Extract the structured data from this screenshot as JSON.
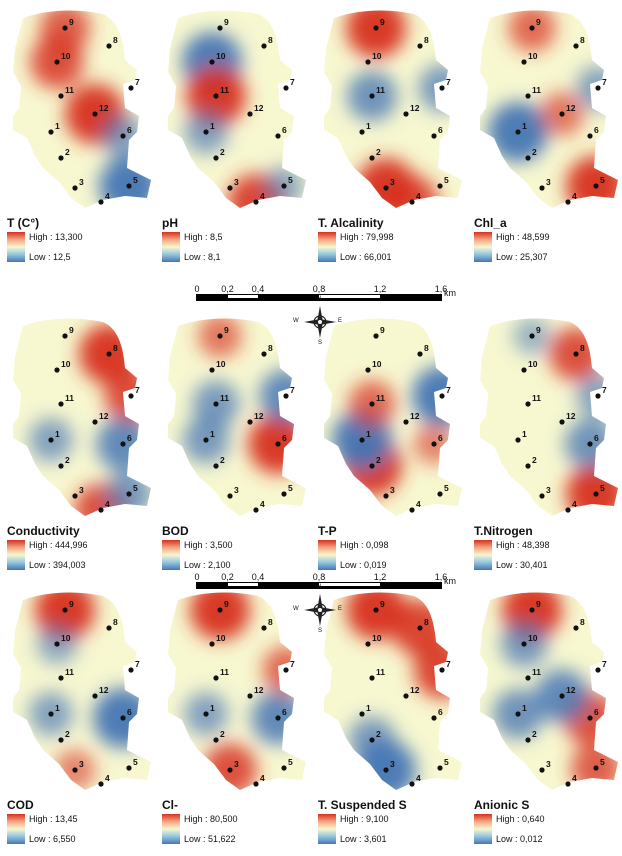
{
  "colors": {
    "high": "#d7301f",
    "mid": "#f7f7d0",
    "low": "#4575b4",
    "point": "#111111"
  },
  "station_labels": [
    "1",
    "2",
    "3",
    "4",
    "5",
    "6",
    "7",
    "8",
    "9",
    "10",
    "11",
    "12"
  ],
  "legend_text": {
    "high": "High",
    "low": "Low"
  },
  "panels": [
    {
      "title": "T (C°)",
      "high": "13,300",
      "low": "12,5"
    },
    {
      "title": "pH",
      "high": "8,5",
      "low": "8,1"
    },
    {
      "title": "T. Alcalinity",
      "high": "79,998",
      "low": "66,001"
    },
    {
      "title": "Chl_a",
      "high": "48,599",
      "low": "25,307"
    },
    {
      "title": "Conductivity",
      "high": "444,996",
      "low": "394,003"
    },
    {
      "title": "BOD",
      "high": "3,500",
      "low": "2,100"
    },
    {
      "title": "T-P",
      "high": "0,098",
      "low": "0,019"
    },
    {
      "title": "T.Nitrogen",
      "high": "48,398",
      "low": "30,401"
    },
    {
      "title": "COD",
      "high": "13,45",
      "low": "6,550"
    },
    {
      "title": "Cl-",
      "high": "80,500",
      "low": "51,622"
    },
    {
      "title": "T. Suspended S",
      "high": "9,100",
      "low": "3,601"
    },
    {
      "title": "Anionic S",
      "high": "0,640",
      "low": "0,012"
    }
  ],
  "hotspots": [
    [
      {
        "s": 12,
        "v": 1
      },
      {
        "s": 10,
        "v": 0.8
      },
      {
        "s": 9,
        "v": 0.7
      },
      {
        "s": 5,
        "v": -1
      },
      {
        "s": 6,
        "v": -0.5
      }
    ],
    [
      {
        "s": 10,
        "v": -1
      },
      {
        "s": 11,
        "v": 1
      },
      {
        "s": 4,
        "v": 0.9
      },
      {
        "s": 5,
        "v": -0.4
      },
      {
        "s": 1,
        "v": -0.5
      }
    ],
    [
      {
        "s": 9,
        "v": 1
      },
      {
        "s": 3,
        "v": 1
      },
      {
        "s": 4,
        "v": 0.8
      },
      {
        "s": 11,
        "v": -0.7
      },
      {
        "s": 7,
        "v": -0.6
      }
    ],
    [
      {
        "s": 1,
        "v": -1
      },
      {
        "s": 5,
        "v": 1
      },
      {
        "s": 9,
        "v": 0.6
      },
      {
        "s": 7,
        "v": -0.5
      },
      {
        "s": 12,
        "v": 0.5
      }
    ],
    [
      {
        "s": 8,
        "v": 1
      },
      {
        "s": 7,
        "v": 0.8
      },
      {
        "s": 4,
        "v": 0.8
      },
      {
        "s": 6,
        "v": -0.8
      },
      {
        "s": 1,
        "v": -0.5
      },
      {
        "s": 5,
        "v": -0.6
      }
    ],
    [
      {
        "s": 6,
        "v": 1
      },
      {
        "s": 7,
        "v": -0.8
      },
      {
        "s": 1,
        "v": -0.6
      },
      {
        "s": 11,
        "v": -0.6
      },
      {
        "s": 9,
        "v": 0.5
      }
    ],
    [
      {
        "s": 2,
        "v": 1
      },
      {
        "s": 1,
        "v": -1
      },
      {
        "s": 7,
        "v": -1
      },
      {
        "s": 11,
        "v": 0.6
      },
      {
        "s": 6,
        "v": 0.4
      }
    ],
    [
      {
        "s": 5,
        "v": 1
      },
      {
        "s": 8,
        "v": 0.8
      },
      {
        "s": 6,
        "v": -0.7
      },
      {
        "s": 9,
        "v": -0.3
      },
      {
        "s": 7,
        "v": -0.5
      }
    ],
    [
      {
        "s": 9,
        "v": 1
      },
      {
        "s": 6,
        "v": -1
      },
      {
        "s": 1,
        "v": -0.5
      },
      {
        "s": 3,
        "v": 0.4
      },
      {
        "s": 10,
        "v": -0.4
      }
    ],
    [
      {
        "s": 9,
        "v": 1
      },
      {
        "s": 3,
        "v": 0.8
      },
      {
        "s": 6,
        "v": -0.8
      },
      {
        "s": 1,
        "v": -0.5
      },
      {
        "s": 7,
        "v": 0.6
      }
    ],
    [
      {
        "s": 9,
        "v": 1
      },
      {
        "s": 8,
        "v": 0.9
      },
      {
        "s": 7,
        "v": 0.9
      },
      {
        "s": 3,
        "v": -1
      },
      {
        "s": 2,
        "v": -0.6
      }
    ],
    [
      {
        "s": 9,
        "v": 1
      },
      {
        "s": 6,
        "v": 0.8
      },
      {
        "s": 5,
        "v": 0.7
      },
      {
        "s": 12,
        "v": -0.8
      },
      {
        "s": 1,
        "v": -0.7
      },
      {
        "s": 10,
        "v": -0.6
      }
    ]
  ],
  "scale_ticks": [
    "0",
    "0,2",
    "0,4",
    "0,8",
    "1,2",
    "1,6"
  ],
  "scale_unit": "km",
  "compass_letters": {
    "n": "N",
    "s": "S",
    "e": "E",
    "w": "W"
  }
}
